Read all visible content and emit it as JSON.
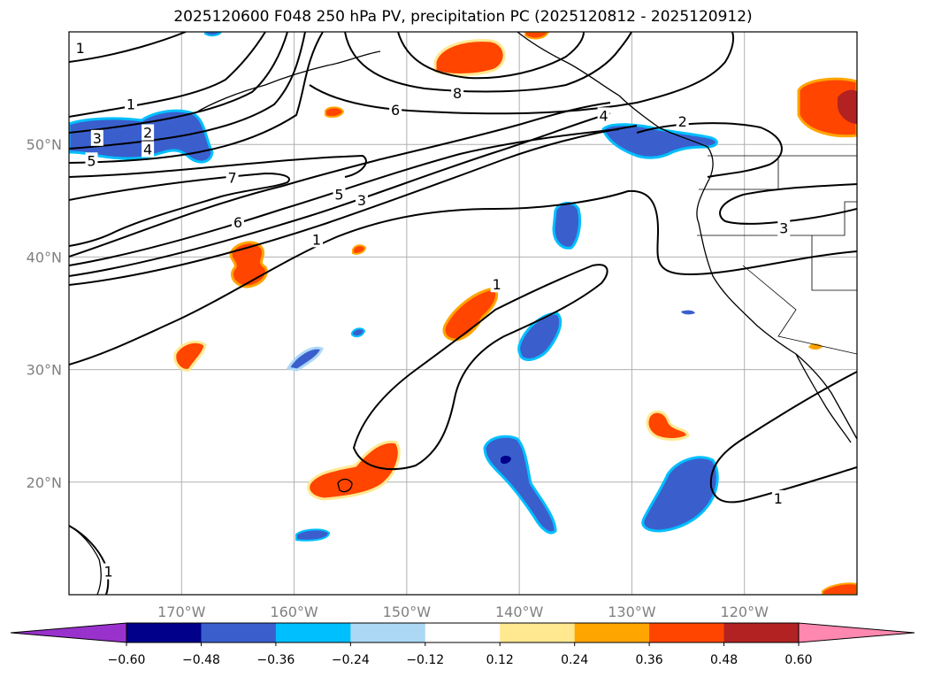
{
  "title": "2025120600 F048 250 hPa PV, precipitation PC (2025120812 - 2025120912)",
  "map": {
    "lon_range": [
      -180,
      -110
    ],
    "lat_range": [
      10,
      60
    ],
    "lat_ticks": [
      {
        "value": 20,
        "label": "20°N"
      },
      {
        "value": 30,
        "label": "30°N"
      },
      {
        "value": 40,
        "label": "40°N"
      },
      {
        "value": 50,
        "label": "50°N"
      }
    ],
    "lon_ticks": [
      {
        "value": -170,
        "label": "170°W"
      },
      {
        "value": -160,
        "label": "160°W"
      },
      {
        "value": -150,
        "label": "150°W"
      },
      {
        "value": -140,
        "label": "140°W"
      },
      {
        "value": -130,
        "label": "130°W"
      },
      {
        "value": -120,
        "label": "120°W"
      }
    ],
    "grid": true
  },
  "contour_labels": [
    {
      "text": "1",
      "lon": -179.0,
      "lat": 58.5
    },
    {
      "text": "1",
      "lon": -174.5,
      "lat": 53.5
    },
    {
      "text": "2",
      "lon": -173.0,
      "lat": 51.0
    },
    {
      "text": "3",
      "lon": -177.5,
      "lat": 50.5
    },
    {
      "text": "4",
      "lon": -173.0,
      "lat": 49.5
    },
    {
      "text": "5",
      "lon": -178.0,
      "lat": 48.5
    },
    {
      "text": "7",
      "lon": -165.5,
      "lat": 47.0
    },
    {
      "text": "5",
      "lon": -156.0,
      "lat": 45.5
    },
    {
      "text": "3",
      "lon": -154.0,
      "lat": 45.0
    },
    {
      "text": "6",
      "lon": -165.0,
      "lat": 43.0
    },
    {
      "text": "1",
      "lon": -158.0,
      "lat": 41.5
    },
    {
      "text": "6",
      "lon": -151.0,
      "lat": 53.0
    },
    {
      "text": "8",
      "lon": -145.5,
      "lat": 54.5
    },
    {
      "text": "4",
      "lon": -132.5,
      "lat": 52.5
    },
    {
      "text": "2",
      "lon": -125.5,
      "lat": 52.0
    },
    {
      "text": "3",
      "lon": -116.5,
      "lat": 42.5
    },
    {
      "text": "1",
      "lon": -142.0,
      "lat": 37.5
    },
    {
      "text": "1",
      "lon": -117.0,
      "lat": 18.5
    },
    {
      "text": "1",
      "lon": -176.5,
      "lat": 12.0
    }
  ],
  "colorbar": {
    "ticks": [
      "−0.60",
      "−0.48",
      "−0.36",
      "−0.24",
      "−0.12",
      "0.12",
      "0.24",
      "0.36",
      "0.48",
      "0.60"
    ],
    "under_color": "#9932cc",
    "colors": [
      "#00008b",
      "#3a5fcd",
      "#00bfff",
      "#add8f5",
      "#ffffff",
      "#ffe88f",
      "#ffa500",
      "#ff4500",
      "#b22222"
    ],
    "over_color": "#ff88b0"
  }
}
